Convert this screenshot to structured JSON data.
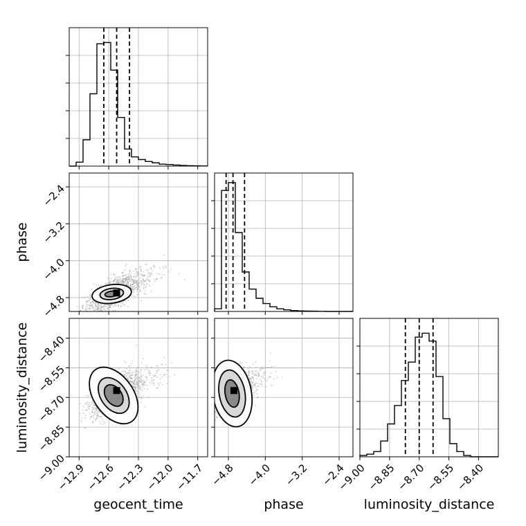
{
  "chart_data": {
    "type": "corner",
    "parameters": [
      "geocent_time",
      "phase",
      "luminosity_distance"
    ],
    "ranges": {
      "geocent_time": [
        -13.0,
        -11.6
      ],
      "phase": [
        -5.1,
        -2.1
      ],
      "luminosity_distance": [
        -9.0,
        -8.3
      ]
    },
    "ticks": {
      "geocent_time": [
        -12.9,
        -12.6,
        -12.3,
        -12.0,
        -11.7
      ],
      "phase": [
        -4.8,
        -4.0,
        -3.2,
        -2.4
      ],
      "luminosity_distance": [
        -9.0,
        -8.85,
        -8.7,
        -8.55,
        -8.4
      ]
    },
    "tick_labels": {
      "geocent_time": [
        "−12.9",
        "−12.6",
        "−12.3",
        "−12.0",
        "−11.7"
      ],
      "phase": [
        "−4.8",
        "−4.0",
        "−3.2",
        "−2.4"
      ],
      "luminosity_distance": [
        "−9.00",
        "−8.85",
        "−8.70",
        "−8.55",
        "−8.40"
      ]
    },
    "axis_labels": {
      "geocent_time": "geocent_time",
      "phase": "phase",
      "luminosity_distance": "luminosity_distance"
    },
    "quantiles": {
      "geocent_time": [
        -12.65,
        -12.52,
        -12.39
      ],
      "phase": [
        -4.85,
        -4.7,
        -4.45
      ],
      "luminosity_distance": [
        -8.77,
        -8.7,
        -8.63
      ]
    },
    "histograms": {
      "geocent_time": [
        0.0,
        0.03,
        0.2,
        0.55,
        0.93,
        0.94,
        0.73,
        0.37,
        0.13,
        0.07,
        0.05,
        0.035,
        0.025,
        0.015,
        0.012,
        0.008,
        0.005,
        0.003,
        0.002,
        0.001
      ],
      "phase": [
        0.02,
        0.92,
        0.98,
        0.6,
        0.3,
        0.17,
        0.1,
        0.06,
        0.035,
        0.02,
        0.012,
        0.007,
        0.004,
        0.003,
        0.002,
        0.001,
        0.0,
        0.0,
        0.0,
        0.0
      ],
      "luminosity_distance": [
        0.01,
        0.02,
        0.04,
        0.12,
        0.25,
        0.39,
        0.58,
        0.72,
        0.91,
        0.94,
        0.88,
        0.61,
        0.29,
        0.1,
        0.04,
        0.01,
        0.0,
        0.0,
        0.0,
        0.0
      ]
    },
    "joint": [
      {
        "x": "geocent_time",
        "y": "phase",
        "center": [
          -12.57,
          -4.72
        ],
        "peak": [
          -12.52,
          -4.7
        ],
        "contour_radii": [
          [
            0.07,
            0.06
          ],
          [
            0.12,
            0.12
          ],
          [
            0.2,
            0.2
          ]
        ],
        "contour_rotation_deg": -8,
        "scatter_spread": [
          0.22,
          0.35
        ],
        "scatter_correlation": 0.6
      },
      {
        "x": "geocent_time",
        "y": "luminosity_distance",
        "center": [
          -12.55,
          -8.69
        ],
        "peak": [
          -12.52,
          -8.665
        ],
        "contour_radii": [
          [
            0.08,
            0.06
          ],
          [
            0.13,
            0.1
          ],
          [
            0.2,
            0.16
          ]
        ],
        "contour_rotation_deg": -35,
        "scatter_spread": [
          0.22,
          0.1
        ],
        "scatter_correlation": 0.55
      },
      {
        "x": "phase",
        "y": "luminosity_distance",
        "center": [
          -4.72,
          -8.68
        ],
        "peak": [
          -4.68,
          -8.665
        ],
        "contour_radii": [
          [
            0.15,
            0.07
          ],
          [
            0.28,
            0.12
          ],
          [
            0.42,
            0.17
          ]
        ],
        "contour_rotation_deg": -10,
        "scatter_spread": [
          0.35,
          0.09
        ],
        "scatter_correlation": 0.5
      }
    ],
    "grid": true,
    "colors": {
      "line": "#000000",
      "scatter": "#9a9a9a",
      "grid": "#b0b0b0"
    }
  }
}
